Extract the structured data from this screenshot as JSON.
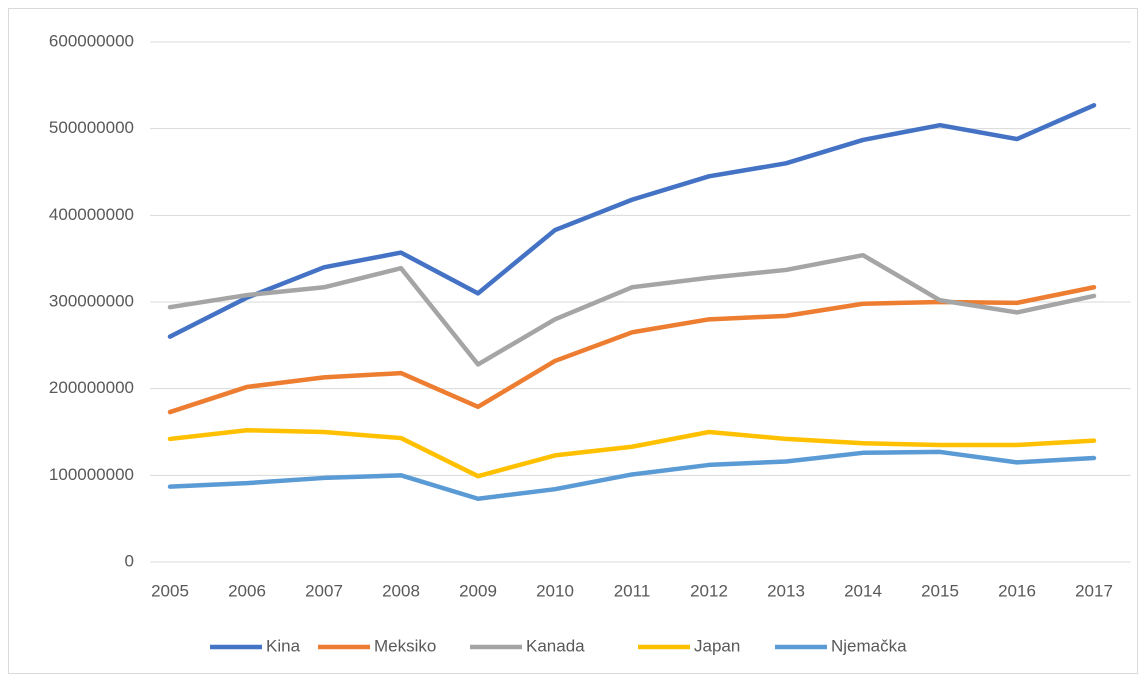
{
  "chart_data": {
    "type": "line",
    "categories": [
      "2005",
      "2006",
      "2007",
      "2008",
      "2009",
      "2010",
      "2011",
      "2012",
      "2013",
      "2014",
      "2015",
      "2016",
      "2017"
    ],
    "series": [
      {
        "name": "Kina",
        "color": "#4472c4",
        "values": [
          260000000,
          305000000,
          340000000,
          357000000,
          310000000,
          383000000,
          418000000,
          445000000,
          460000000,
          487000000,
          504000000,
          488000000,
          527000000
        ]
      },
      {
        "name": "Meksiko",
        "color": "#ed7d31",
        "values": [
          173000000,
          202000000,
          213000000,
          218000000,
          179000000,
          232000000,
          265000000,
          280000000,
          284000000,
          298000000,
          300000000,
          299000000,
          317000000
        ]
      },
      {
        "name": "Kanada",
        "color": "#a5a5a5",
        "values": [
          294000000,
          308000000,
          317000000,
          339000000,
          228000000,
          280000000,
          317000000,
          328000000,
          337000000,
          354000000,
          302000000,
          288000000,
          307000000
        ]
      },
      {
        "name": "Japan",
        "color": "#ffc000",
        "values": [
          142000000,
          152000000,
          150000000,
          143000000,
          99000000,
          123000000,
          133000000,
          150000000,
          142000000,
          137000000,
          135000000,
          135000000,
          140000000
        ]
      },
      {
        "name": "Njemačka",
        "color": "#5b9bd5",
        "values": [
          87000000,
          91000000,
          97000000,
          100000000,
          73000000,
          84000000,
          101000000,
          112000000,
          116000000,
          126000000,
          127000000,
          115000000,
          120000000
        ]
      }
    ],
    "ylim": [
      0,
      600000000
    ],
    "yticks": [
      0,
      100000000,
      200000000,
      300000000,
      400000000,
      500000000,
      600000000
    ],
    "grid": true,
    "legend": "bottom"
  }
}
